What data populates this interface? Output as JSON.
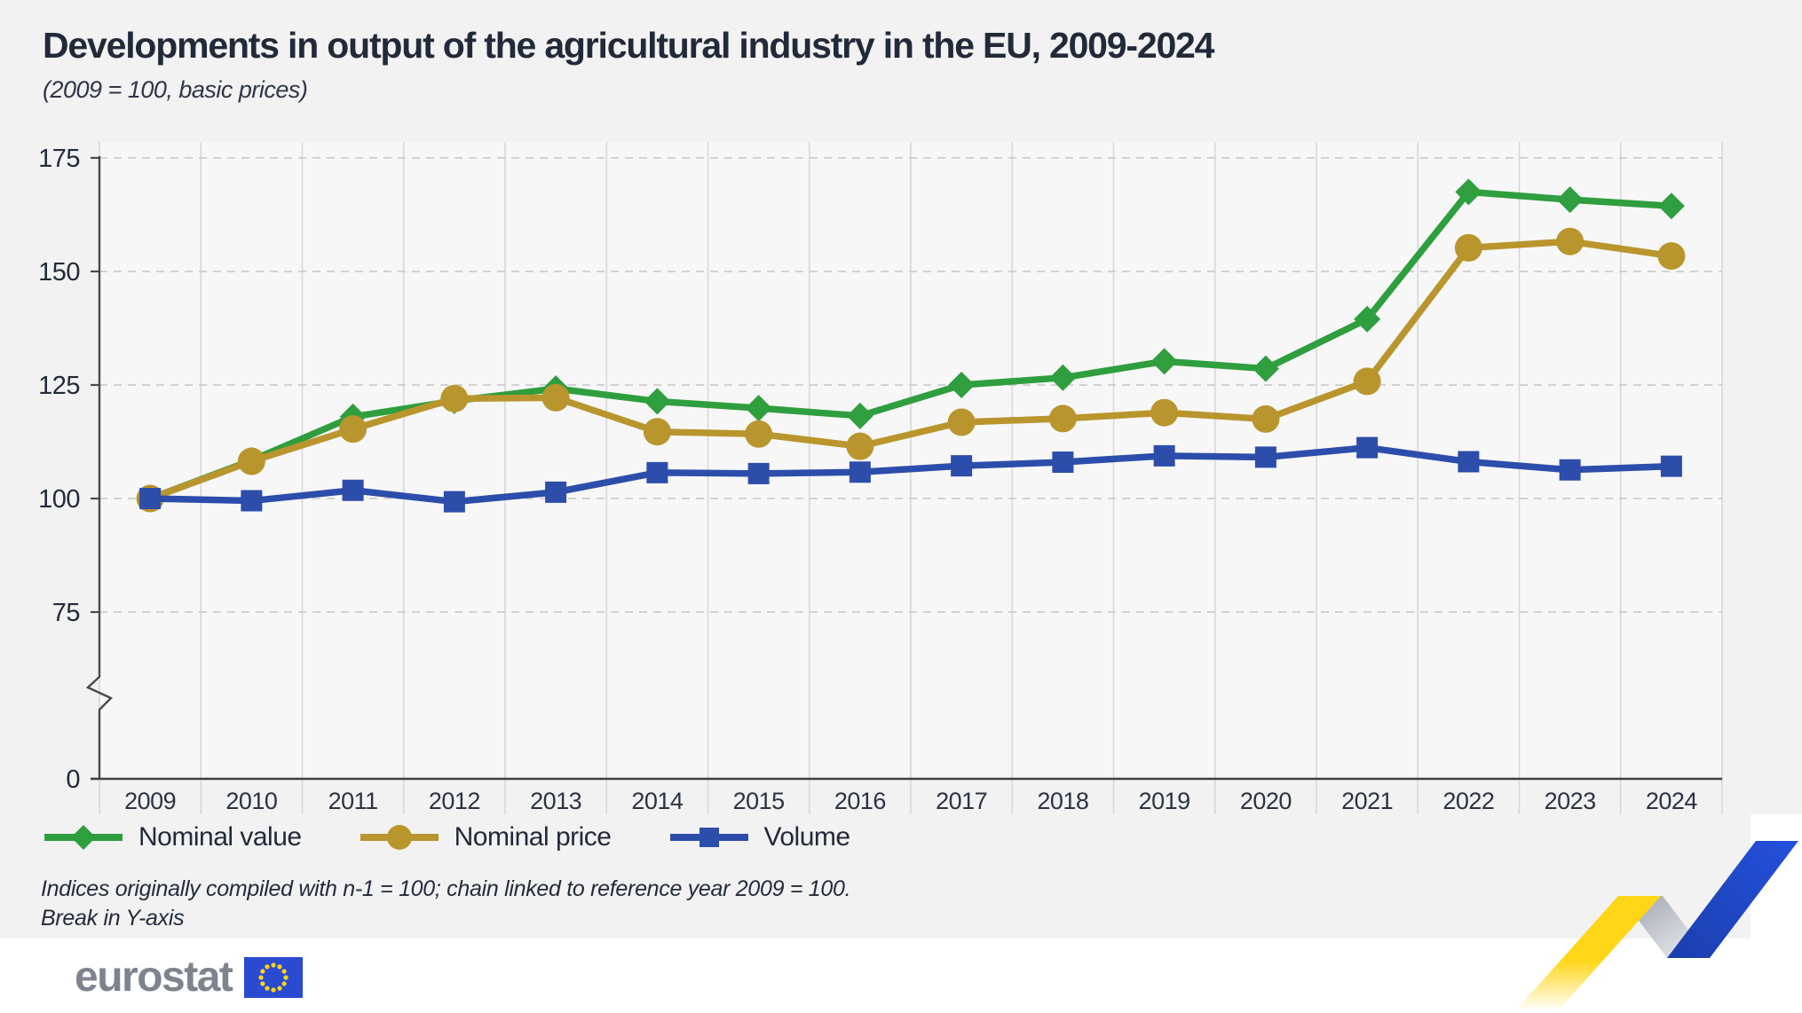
{
  "chart_data": {
    "type": "line",
    "title": "Developments in output of the agricultural industry in the EU, 2009-2024",
    "subtitle": "(2009 = 100, basic prices)",
    "categories": [
      "2009",
      "2010",
      "2011",
      "2012",
      "2013",
      "2014",
      "2015",
      "2016",
      "2017",
      "2018",
      "2019",
      "2020",
      "2021",
      "2022",
      "2023",
      "2024"
    ],
    "series": [
      {
        "name": "Nominal value",
        "marker": "diamond",
        "color": "#2f9e3e",
        "values": [
          100,
          108.4,
          118.0,
          121.5,
          124.2,
          121.4,
          119.9,
          118.2,
          125.0,
          126.6,
          130.2,
          128.6,
          139.5,
          167.5,
          165.8,
          164.4
        ]
      },
      {
        "name": "Nominal price",
        "marker": "circle",
        "color": "#b9952d",
        "values": [
          100,
          108.2,
          115.3,
          122.0,
          122.2,
          114.7,
          114.2,
          111.5,
          116.8,
          117.6,
          118.9,
          117.5,
          125.8,
          155.2,
          156.6,
          153.4
        ]
      },
      {
        "name": "Volume",
        "marker": "square",
        "color": "#2d4dab",
        "values": [
          100,
          99.5,
          101.8,
          99.3,
          101.4,
          105.7,
          105.5,
          105.8,
          107.2,
          108.0,
          109.4,
          109.1,
          111.2,
          108.1,
          106.3,
          107.1
        ]
      }
    ],
    "y_ticks": [
      175,
      150,
      125,
      100,
      75,
      0
    ],
    "ylim": [
      0,
      175
    ],
    "axis_break": "between 0 and 75",
    "grid": "horizontal dashed, vertical solid category separators",
    "legend_position": "bottom-left"
  },
  "footnotes": {
    "line1": "Indices originally compiled with n-1 = 100; chain linked to reference year 2009 = 100.",
    "line2": "Break in Y-axis"
  },
  "logo": {
    "text": "eurostat"
  },
  "colors": {
    "panel_background": "#f2f2f2",
    "plot_background": "#f7f7f7",
    "title_text": "#222a3a",
    "grid_dashed": "#c6c6c6",
    "grid_vertical": "#d8d8d8",
    "axis": "#4a4a4a",
    "ribbon_yellow": "#ffd617",
    "ribbon_blue": "#2147c4",
    "ribbon_fold": "#a9adb6",
    "flag_blue": "#2a4ad2",
    "flag_stars": "#ffd617"
  }
}
